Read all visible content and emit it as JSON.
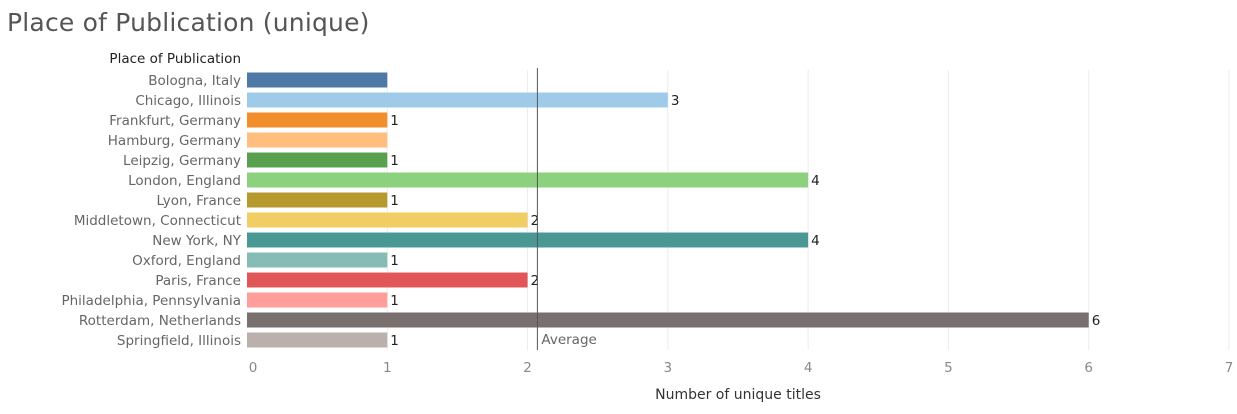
{
  "title": "Place of Publication (unique)",
  "chart_data": {
    "type": "bar",
    "orientation": "horizontal",
    "row_header": "Place of Publication",
    "xlabel": "Number of unique titles",
    "xlim": [
      0,
      7
    ],
    "x_ticks": [
      "0",
      "1",
      "2",
      "3",
      "4",
      "5",
      "6",
      "7"
    ],
    "grid": true,
    "reference_line": {
      "label": "Average",
      "value": 2.07
    },
    "categories": [
      "Bologna, Italy",
      "Chicago, Illinois",
      "Frankfurt, Germany",
      "Hamburg, Germany",
      "Leipzig, Germany",
      "London, England",
      "Lyon, France",
      "Middletown, Connecticut",
      "New York, NY",
      "Oxford, England",
      "Paris, France",
      "Philadelphia, Pennsylvania",
      "Rotterdam, Netherlands",
      "Springfield, Illinois"
    ],
    "values": [
      1,
      3,
      1,
      1,
      1,
      4,
      1,
      2,
      4,
      1,
      2,
      1,
      6,
      1
    ],
    "data_labels": [
      "",
      "3",
      "1",
      "",
      "1",
      "4",
      "1",
      "2",
      "4",
      "1",
      "2",
      "1",
      "6",
      "1"
    ],
    "colors": [
      "#4e79a7",
      "#a0cbe8",
      "#f28e2b",
      "#ffbe7d",
      "#59a14f",
      "#8cd17d",
      "#b6992d",
      "#f1ce63",
      "#499894",
      "#86bcb6",
      "#e15759",
      "#ff9d9a",
      "#79706e",
      "#bab0ac"
    ]
  }
}
